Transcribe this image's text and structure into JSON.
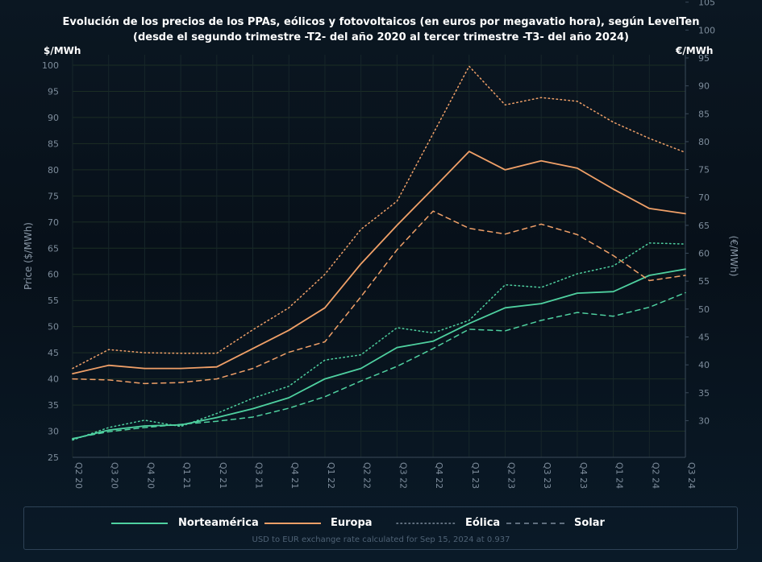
{
  "title_line1": "Evolución de los precios de los PPAs, eólicos y fotovoltaicos (en euros por megavatio hora), según LevelTen",
  "title_line2": "(desde el segundo trimestre -T2- del año 2020 al tercer trimestre -T3- del año 2024)",
  "unit_left": "$/MWh",
  "unit_right": "€/MWh",
  "legend": {
    "north_america": "Norteamérica",
    "europe": "Europa",
    "wind": "Eólica",
    "solar": "Solar",
    "note": "USD to EUR exchange rate calculated for Sep 15, 2024 at 0.937"
  },
  "colors": {
    "north_america": "#4fd1a0",
    "europe": "#f0a068",
    "background": "#071019",
    "grid": "#1c2e24"
  },
  "chart_data": {
    "type": "line",
    "categories": [
      "Q2 20",
      "Q3 20",
      "Q4 20",
      "Q1 21",
      "Q2 21",
      "Q3 21",
      "Q4 21",
      "Q1 22",
      "Q2 22",
      "Q3 22",
      "Q4 22",
      "Q1 23",
      "Q2 23",
      "Q3 23",
      "Q4 23",
      "Q1 24",
      "Q2 24",
      "Q3 24"
    ],
    "ylabel": "Price ($/MWh)",
    "y2label": "(€/MWh)",
    "ylim": [
      25,
      102
    ],
    "yticks": [
      25,
      30,
      35,
      40,
      45,
      50,
      55,
      60,
      65,
      70,
      75,
      80,
      85,
      90,
      95,
      100
    ],
    "y2ticks": [
      30,
      35,
      40,
      45,
      50,
      55,
      60,
      65,
      70,
      75,
      80,
      85,
      90,
      95,
      100,
      105
    ],
    "exchange_rate": 0.937,
    "grid": true,
    "legend_position": "bottom",
    "series": [
      {
        "name": "Norteamérica",
        "region": "north_america",
        "style": "solid",
        "values": [
          28.5,
          30.2,
          31.0,
          31.2,
          32.6,
          34.3,
          36.4,
          40.0,
          42.0,
          46.0,
          47.2,
          50.6,
          53.6,
          54.4,
          56.4,
          56.7,
          59.8,
          61.0
        ]
      },
      {
        "name": "Europa",
        "region": "europe",
        "style": "solid",
        "values": [
          41.0,
          42.6,
          42.0,
          42.0,
          42.3,
          45.8,
          49.3,
          53.6,
          62.0,
          69.4,
          76.4,
          83.5,
          80.0,
          81.7,
          80.3,
          76.3,
          72.6,
          71.6
        ]
      },
      {
        "name": "Norteamérica Eólica",
        "region": "north_america",
        "style": "dotted",
        "values": [
          28.3,
          30.7,
          32.1,
          30.9,
          33.4,
          36.3,
          38.6,
          43.6,
          44.6,
          49.8,
          48.8,
          51.2,
          58.0,
          57.5,
          60.1,
          61.6,
          66.0,
          65.8
        ]
      },
      {
        "name": "Europa Eólica",
        "region": "europe",
        "style": "dotted",
        "values": [
          42.0,
          45.6,
          45.0,
          44.9,
          44.9,
          49.4,
          53.6,
          60.0,
          68.6,
          74.0,
          86.9,
          99.8,
          92.4,
          93.8,
          93.1,
          89.1,
          86.0,
          83.3
        ]
      },
      {
        "name": "Norteamérica Solar",
        "region": "north_america",
        "style": "dashed",
        "values": [
          28.6,
          29.9,
          30.7,
          31.3,
          31.9,
          32.7,
          34.4,
          36.6,
          39.6,
          42.4,
          45.8,
          49.5,
          49.2,
          51.2,
          52.7,
          52.0,
          53.7,
          56.5
        ]
      },
      {
        "name": "Europa Solar",
        "region": "europe",
        "style": "dashed",
        "values": [
          40.0,
          39.8,
          39.1,
          39.3,
          40.0,
          42.0,
          45.1,
          47.1,
          55.7,
          64.7,
          72.1,
          68.8,
          67.7,
          69.6,
          67.6,
          63.6,
          58.8,
          59.8
        ]
      }
    ]
  }
}
